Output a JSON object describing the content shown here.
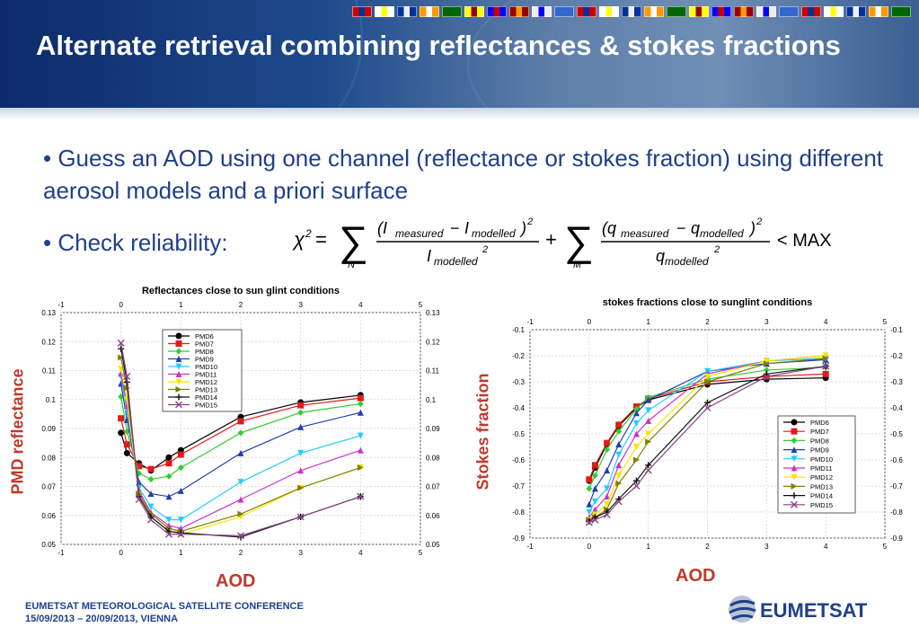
{
  "slide": {
    "title": "Alternate retrieval combining reflectances & stokes fractions",
    "bullet1": "• Guess an AOD using one channel (reflectance or stokes fraction) using different aerosol models and a priori surface",
    "bullet2": "• Check reliability:",
    "formula_rhs": "< MAX",
    "footer_line1": "EUMETSAT METEOROLOGICAL SATELLITE CONFERENCE",
    "footer_line2": "15/09/2013 – 20/09/2013, VIENNA",
    "logo_text": "EUMETSAT",
    "colors": {
      "header": "#0d2a6a",
      "bullet_text": "#1f3f8c",
      "axis_label": "#c0392b"
    }
  },
  "legend": [
    "PMD6",
    "PMD7",
    "PMD8",
    "PMD9",
    "PMD10",
    "PMD11",
    "PMD12",
    "PMD13",
    "PMD14",
    "PMD15"
  ],
  "series_colors": [
    "#000000",
    "#e31a1c",
    "#33cc33",
    "#1f3fb0",
    "#22ccff",
    "#cc33cc",
    "#f5e600",
    "#808000",
    "#111111",
    "#884488"
  ],
  "series_markers": [
    "circle",
    "square",
    "diamond",
    "triangle",
    "triangle-down",
    "triangle",
    "triangle-down",
    "triangle-right",
    "plus",
    "x"
  ],
  "chart_data": [
    {
      "type": "line",
      "title": "Reflectances close to sun glint conditions",
      "xlabel": "AOD",
      "ylabel": "PMD reflectance",
      "xlim": [
        -1,
        5
      ],
      "ylim": [
        0.05,
        0.13
      ],
      "xticks": [
        "-1",
        "0",
        "1",
        "2",
        "3",
        "4",
        "5"
      ],
      "yticks": [
        "0.05",
        "0.06",
        "0.07",
        "0.08",
        "0.09",
        "0.1",
        "0.11",
        "0.12",
        "0.13"
      ],
      "legend_position": "top-left",
      "x": [
        0,
        0.1,
        0.3,
        0.5,
        0.8,
        1,
        2,
        3,
        4
      ],
      "series": [
        {
          "name": "PMD6",
          "values": [
            0.0885,
            0.0815,
            0.078,
            0.0755,
            0.08,
            0.0825,
            0.094,
            0.099,
            0.1015
          ]
        },
        {
          "name": "PMD7",
          "values": [
            0.0935,
            0.0845,
            0.077,
            0.076,
            0.078,
            0.081,
            0.0925,
            0.098,
            0.1005
          ]
        },
        {
          "name": "PMD8",
          "values": [
            0.101,
            0.089,
            0.0745,
            0.0725,
            0.0735,
            0.0765,
            0.0885,
            0.0955,
            0.0985
          ]
        },
        {
          "name": "PMD9",
          "values": [
            0.1055,
            0.093,
            0.0715,
            0.0675,
            0.0665,
            0.0685,
            0.0815,
            0.0905,
            0.0955
          ]
        },
        {
          "name": "PMD10",
          "values": [
            0.108,
            0.096,
            0.0695,
            0.063,
            0.0585,
            0.0585,
            0.0715,
            0.0815,
            0.0875
          ]
        },
        {
          "name": "PMD11",
          "values": [
            0.109,
            0.098,
            0.0685,
            0.061,
            0.0565,
            0.0555,
            0.0655,
            0.0755,
            0.0825
          ]
        },
        {
          "name": "PMD12",
          "values": [
            0.1105,
            0.1,
            0.067,
            0.0595,
            0.0545,
            0.0535,
            0.0595,
            0.0695,
            0.0765
          ]
        },
        {
          "name": "PMD13",
          "values": [
            0.1145,
            0.104,
            0.0675,
            0.0605,
            0.0555,
            0.0545,
            0.0605,
            0.0695,
            0.0765
          ]
        },
        {
          "name": "PMD14",
          "values": [
            0.1175,
            0.106,
            0.0665,
            0.0595,
            0.0545,
            0.054,
            0.0525,
            0.0595,
            0.0665
          ]
        },
        {
          "name": "PMD15",
          "values": [
            0.1195,
            0.108,
            0.0655,
            0.0585,
            0.0535,
            0.0535,
            0.053,
            0.0595,
            0.0665
          ]
        }
      ]
    },
    {
      "type": "line",
      "title": "stokes fractions close to sunglint conditions",
      "xlabel": "AOD",
      "ylabel": "Stokes fraction",
      "xlim": [
        -1,
        5
      ],
      "ylim": [
        -0.9,
        -0.1
      ],
      "xticks": [
        "-1",
        "0",
        "1",
        "2",
        "3",
        "4",
        "5"
      ],
      "yticks": [
        "-0.1",
        "-0.2",
        "-0.3",
        "-0.4",
        "-0.5",
        "-0.6",
        "-0.7",
        "-0.8",
        "-0.9"
      ],
      "legend_position": "bottom-right",
      "x": [
        0,
        0.1,
        0.3,
        0.5,
        0.8,
        1,
        2,
        3,
        4
      ],
      "series": [
        {
          "name": "PMD6",
          "values": [
            -0.68,
            -0.63,
            -0.54,
            -0.47,
            -0.4,
            -0.37,
            -0.31,
            -0.29,
            -0.285
          ]
        },
        {
          "name": "PMD7",
          "values": [
            -0.675,
            -0.62,
            -0.535,
            -0.465,
            -0.395,
            -0.365,
            -0.3,
            -0.28,
            -0.27
          ]
        },
        {
          "name": "PMD8",
          "values": [
            -0.71,
            -0.66,
            -0.56,
            -0.49,
            -0.405,
            -0.36,
            -0.29,
            -0.255,
            -0.245
          ]
        },
        {
          "name": "PMD9",
          "values": [
            -0.77,
            -0.71,
            -0.64,
            -0.54,
            -0.42,
            -0.37,
            -0.26,
            -0.23,
            -0.215
          ]
        },
        {
          "name": "PMD10",
          "values": [
            -0.8,
            -0.76,
            -0.71,
            -0.58,
            -0.46,
            -0.41,
            -0.26,
            -0.22,
            -0.21
          ]
        },
        {
          "name": "PMD11",
          "values": [
            -0.82,
            -0.79,
            -0.74,
            -0.62,
            -0.5,
            -0.45,
            -0.27,
            -0.22,
            -0.2
          ]
        },
        {
          "name": "PMD12",
          "values": [
            -0.83,
            -0.81,
            -0.77,
            -0.66,
            -0.55,
            -0.5,
            -0.28,
            -0.22,
            -0.2
          ]
        },
        {
          "name": "PMD13",
          "values": [
            -0.83,
            -0.82,
            -0.79,
            -0.69,
            -0.6,
            -0.53,
            -0.3,
            -0.23,
            -0.21
          ]
        },
        {
          "name": "PMD14",
          "values": [
            -0.835,
            -0.82,
            -0.8,
            -0.75,
            -0.68,
            -0.62,
            -0.38,
            -0.27,
            -0.24
          ]
        },
        {
          "name": "PMD15",
          "values": [
            -0.84,
            -0.83,
            -0.81,
            -0.76,
            -0.7,
            -0.64,
            -0.4,
            -0.28,
            -0.24
          ]
        }
      ]
    }
  ]
}
